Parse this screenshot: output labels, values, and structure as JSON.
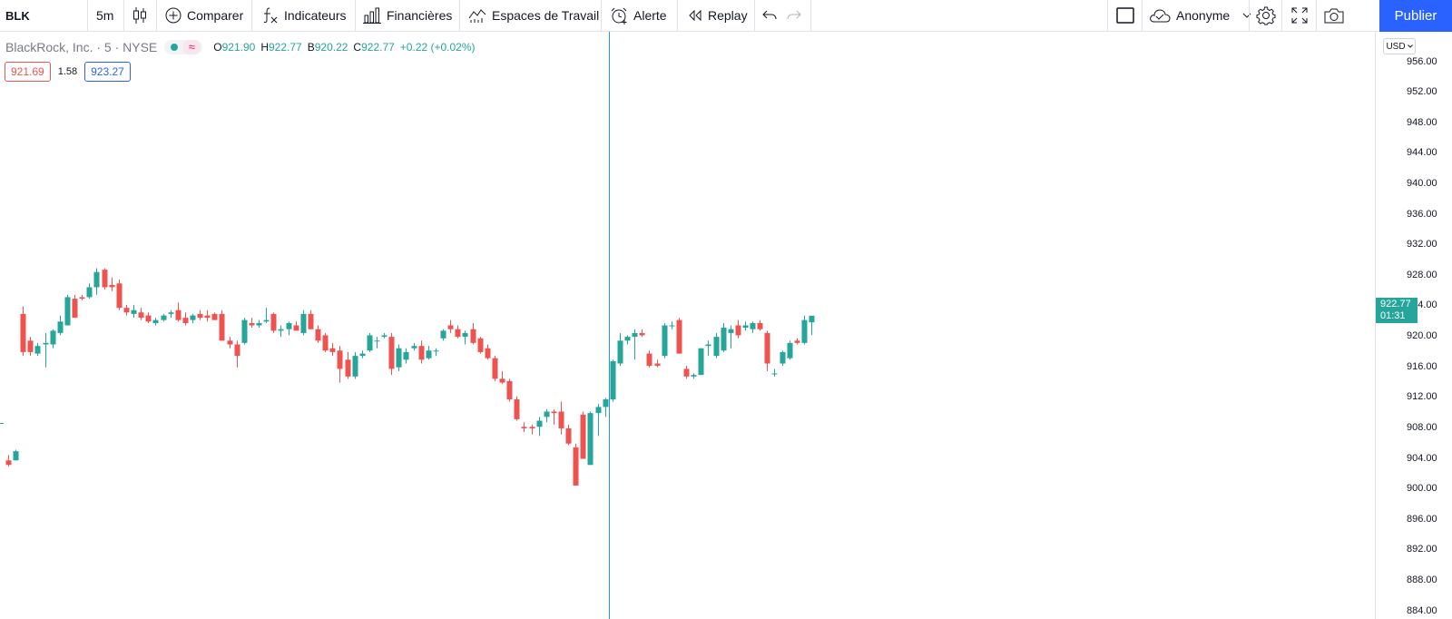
{
  "toolbar": {
    "symbol": "BLK",
    "interval": "5m",
    "compare_label": "Comparer",
    "indicators_label": "Indicateurs",
    "financials_label": "Financières",
    "workspaces_label": "Espaces de Travail",
    "alert_label": "Alerte",
    "replay_label": "Replay",
    "account_label": "Anonyme",
    "publish_label": "Publier"
  },
  "legend": {
    "title": "BlackRock, Inc. · 5 · NYSE",
    "approx_symbol": "≈",
    "open_key": "O",
    "open": "921.90",
    "high_key": "H",
    "high": "922.77",
    "low_key": "B",
    "low": "920.22",
    "close_key": "C",
    "close": "922.77",
    "change": "+0.22 (+0.02%)",
    "bid": "921.69",
    "spread": "1.58",
    "ask": "923.27"
  },
  "price_axis": {
    "currency": "USD",
    "ticks": [
      "956.00",
      "952.00",
      "948.00",
      "944.00",
      "940.00",
      "936.00",
      "932.00",
      "928.00",
      "924.00",
      "920.00",
      "916.00",
      "912.00",
      "908.00",
      "904.00",
      "900.00",
      "896.00",
      "892.00",
      "888.00",
      "884.00"
    ],
    "last_price": "922.77",
    "countdown": "01:31"
  },
  "colors": {
    "up": "#26a69a",
    "down": "#ef5350",
    "crosshair": "#2196f3",
    "accent": "#2962ff"
  },
  "chart_data": {
    "type": "candlestick",
    "ylim": [
      883,
      960
    ],
    "candles": [
      {
        "o": 903.8,
        "h": 904.5,
        "l": 903.0,
        "c": 903.2
      },
      {
        "o": 903.8,
        "h": 905.2,
        "l": 903.8,
        "c": 905.0
      },
      {
        "o": 923.0,
        "h": 924.0,
        "l": 917.5,
        "c": 918.0
      },
      {
        "o": 919.5,
        "h": 920.0,
        "l": 917.5,
        "c": 918.0
      },
      {
        "o": 917.8,
        "h": 919.2,
        "l": 917.5,
        "c": 918.8
      },
      {
        "o": 919.0,
        "h": 920.5,
        "l": 916.0,
        "c": 919.2
      },
      {
        "o": 919.0,
        "h": 921.0,
        "l": 918.5,
        "c": 920.8
      },
      {
        "o": 920.5,
        "h": 922.8,
        "l": 920.2,
        "c": 922.0
      },
      {
        "o": 921.5,
        "h": 925.5,
        "l": 921.5,
        "c": 925.2
      },
      {
        "o": 925.0,
        "h": 925.5,
        "l": 922.5,
        "c": 922.5
      },
      {
        "o": 925.2,
        "h": 925.5,
        "l": 924.8,
        "c": 925.0
      },
      {
        "o": 925.2,
        "h": 927.0,
        "l": 925.0,
        "c": 926.5
      },
      {
        "o": 926.5,
        "h": 929.0,
        "l": 925.5,
        "c": 928.5
      },
      {
        "o": 928.8,
        "h": 929.0,
        "l": 926.2,
        "c": 926.5
      },
      {
        "o": 926.8,
        "h": 927.8,
        "l": 926.0,
        "c": 926.5
      },
      {
        "o": 927.0,
        "h": 927.5,
        "l": 923.5,
        "c": 923.8
      },
      {
        "o": 923.8,
        "h": 924.2,
        "l": 922.8,
        "c": 923.2
      },
      {
        "o": 923.0,
        "h": 924.2,
        "l": 922.5,
        "c": 923.5
      },
      {
        "o": 923.2,
        "h": 923.8,
        "l": 922.2,
        "c": 922.5
      },
      {
        "o": 922.8,
        "h": 923.2,
        "l": 921.8,
        "c": 922.0
      },
      {
        "o": 921.8,
        "h": 922.5,
        "l": 921.5,
        "c": 922.2
      },
      {
        "o": 922.2,
        "h": 923.0,
        "l": 922.0,
        "c": 922.8
      },
      {
        "o": 923.0,
        "h": 923.5,
        "l": 922.5,
        "c": 923.2
      },
      {
        "o": 923.5,
        "h": 924.5,
        "l": 922.0,
        "c": 922.2
      },
      {
        "o": 922.5,
        "h": 923.2,
        "l": 921.5,
        "c": 921.8
      },
      {
        "o": 922.2,
        "h": 923.0,
        "l": 921.8,
        "c": 922.8
      },
      {
        "o": 923.0,
        "h": 923.5,
        "l": 922.2,
        "c": 922.5
      },
      {
        "o": 922.8,
        "h": 923.5,
        "l": 922.0,
        "c": 922.5
      },
      {
        "o": 923.0,
        "h": 923.2,
        "l": 922.2,
        "c": 922.2
      },
      {
        "o": 923.0,
        "h": 923.5,
        "l": 919.5,
        "c": 919.5
      },
      {
        "o": 919.5,
        "h": 920.0,
        "l": 918.5,
        "c": 919.0
      },
      {
        "o": 919.0,
        "h": 919.5,
        "l": 916.0,
        "c": 917.5
      },
      {
        "o": 919.2,
        "h": 922.5,
        "l": 919.0,
        "c": 922.2
      },
      {
        "o": 921.8,
        "h": 922.5,
        "l": 921.2,
        "c": 921.5
      },
      {
        "o": 921.5,
        "h": 922.2,
        "l": 921.2,
        "c": 921.8
      },
      {
        "o": 922.0,
        "h": 923.8,
        "l": 921.8,
        "c": 922.2
      },
      {
        "o": 923.0,
        "h": 923.2,
        "l": 920.5,
        "c": 920.8
      },
      {
        "o": 920.8,
        "h": 921.5,
        "l": 920.0,
        "c": 921.0
      },
      {
        "o": 921.0,
        "h": 922.0,
        "l": 920.2,
        "c": 921.8
      },
      {
        "o": 921.5,
        "h": 922.0,
        "l": 920.8,
        "c": 920.8
      },
      {
        "o": 920.5,
        "h": 923.5,
        "l": 920.2,
        "c": 923.0
      },
      {
        "o": 923.0,
        "h": 923.5,
        "l": 921.0,
        "c": 921.0
      },
      {
        "o": 921.0,
        "h": 921.5,
        "l": 919.2,
        "c": 919.5
      },
      {
        "o": 920.2,
        "h": 920.5,
        "l": 918.0,
        "c": 918.2
      },
      {
        "o": 918.5,
        "h": 919.2,
        "l": 917.5,
        "c": 918.0
      },
      {
        "o": 918.2,
        "h": 918.8,
        "l": 914.0,
        "c": 915.8
      },
      {
        "o": 917.0,
        "h": 918.0,
        "l": 914.5,
        "c": 914.8
      },
      {
        "o": 914.8,
        "h": 918.0,
        "l": 914.5,
        "c": 917.5
      },
      {
        "o": 917.5,
        "h": 918.2,
        "l": 917.2,
        "c": 917.8
      },
      {
        "o": 918.2,
        "h": 920.5,
        "l": 918.0,
        "c": 920.2
      },
      {
        "o": 919.5,
        "h": 920.0,
        "l": 918.5,
        "c": 919.5
      },
      {
        "o": 920.0,
        "h": 920.5,
        "l": 919.8,
        "c": 920.2
      },
      {
        "o": 920.0,
        "h": 920.5,
        "l": 915.0,
        "c": 915.8
      },
      {
        "o": 916.0,
        "h": 919.0,
        "l": 915.5,
        "c": 918.5
      },
      {
        "o": 917.0,
        "h": 918.5,
        "l": 916.5,
        "c": 918.0
      },
      {
        "o": 918.5,
        "h": 919.2,
        "l": 918.2,
        "c": 918.8
      },
      {
        "o": 918.8,
        "h": 919.5,
        "l": 916.5,
        "c": 917.0
      },
      {
        "o": 917.2,
        "h": 918.8,
        "l": 917.0,
        "c": 918.2
      },
      {
        "o": 918.2,
        "h": 918.5,
        "l": 917.5,
        "c": 918.2
      },
      {
        "o": 919.8,
        "h": 921.0,
        "l": 919.5,
        "c": 920.8
      },
      {
        "o": 921.5,
        "h": 922.2,
        "l": 920.5,
        "c": 921.0
      },
      {
        "o": 921.0,
        "h": 921.5,
        "l": 919.8,
        "c": 920.0
      },
      {
        "o": 920.0,
        "h": 920.8,
        "l": 919.0,
        "c": 920.5
      },
      {
        "o": 921.0,
        "h": 921.8,
        "l": 919.0,
        "c": 919.2
      },
      {
        "o": 919.8,
        "h": 920.0,
        "l": 917.8,
        "c": 918.0
      },
      {
        "o": 918.5,
        "h": 919.0,
        "l": 917.0,
        "c": 917.2
      },
      {
        "o": 917.2,
        "h": 917.5,
        "l": 914.2,
        "c": 914.5
      },
      {
        "o": 914.5,
        "h": 915.5,
        "l": 913.8,
        "c": 914.0
      },
      {
        "o": 914.2,
        "h": 914.5,
        "l": 911.5,
        "c": 911.8
      },
      {
        "o": 911.8,
        "h": 912.2,
        "l": 909.0,
        "c": 909.2
      },
      {
        "o": 908.2,
        "h": 908.8,
        "l": 907.5,
        "c": 908.0
      },
      {
        "o": 908.2,
        "h": 908.5,
        "l": 907.2,
        "c": 908.0
      },
      {
        "o": 908.2,
        "h": 909.5,
        "l": 907.0,
        "c": 909.0
      },
      {
        "o": 909.5,
        "h": 910.5,
        "l": 908.8,
        "c": 910.2
      },
      {
        "o": 910.2,
        "h": 910.5,
        "l": 908.5,
        "c": 910.0
      },
      {
        "o": 910.2,
        "h": 911.5,
        "l": 907.2,
        "c": 908.0
      },
      {
        "o": 908.0,
        "h": 908.5,
        "l": 905.8,
        "c": 906.0
      },
      {
        "o": 905.5,
        "h": 906.0,
        "l": 900.5,
        "c": 900.5
      },
      {
        "o": 909.8,
        "h": 910.2,
        "l": 904.0,
        "c": 904.0
      },
      {
        "o": 903.2,
        "h": 910.2,
        "l": 903.2,
        "c": 910.0
      },
      {
        "o": 910.0,
        "h": 911.2,
        "l": 907.0,
        "c": 910.8
      },
      {
        "o": 910.8,
        "h": 912.0,
        "l": 909.5,
        "c": 911.8
      },
      {
        "o": 911.8,
        "h": 917.0,
        "l": 911.5,
        "c": 916.8
      },
      {
        "o": 916.5,
        "h": 920.5,
        "l": 916.2,
        "c": 919.5
      },
      {
        "o": 919.5,
        "h": 920.2,
        "l": 919.0,
        "c": 920.0
      },
      {
        "o": 920.0,
        "h": 921.0,
        "l": 917.0,
        "c": 920.5
      },
      {
        "o": 920.5,
        "h": 921.0,
        "l": 920.0,
        "c": 920.2
      },
      {
        "o": 917.8,
        "h": 918.2,
        "l": 916.0,
        "c": 916.2
      },
      {
        "o": 916.5,
        "h": 917.0,
        "l": 916.0,
        "c": 916.2
      },
      {
        "o": 917.5,
        "h": 921.8,
        "l": 917.2,
        "c": 921.5
      },
      {
        "o": 921.5,
        "h": 922.0,
        "l": 921.0,
        "c": 921.5
      },
      {
        "o": 922.2,
        "h": 922.5,
        "l": 917.8,
        "c": 917.8
      },
      {
        "o": 915.8,
        "h": 916.2,
        "l": 914.5,
        "c": 914.8
      },
      {
        "o": 914.8,
        "h": 915.2,
        "l": 914.5,
        "c": 915.0
      },
      {
        "o": 915.0,
        "h": 918.5,
        "l": 915.0,
        "c": 918.5
      },
      {
        "o": 918.8,
        "h": 919.5,
        "l": 917.5,
        "c": 919.0
      },
      {
        "o": 917.5,
        "h": 920.5,
        "l": 917.2,
        "c": 920.0
      },
      {
        "o": 918.2,
        "h": 921.8,
        "l": 918.0,
        "c": 921.2
      },
      {
        "o": 920.5,
        "h": 921.5,
        "l": 918.5,
        "c": 921.0
      },
      {
        "o": 921.5,
        "h": 922.2,
        "l": 919.8,
        "c": 920.2
      },
      {
        "o": 921.2,
        "h": 922.0,
        "l": 920.8,
        "c": 921.5
      },
      {
        "o": 921.0,
        "h": 922.0,
        "l": 920.5,
        "c": 921.8
      },
      {
        "o": 921.8,
        "h": 922.2,
        "l": 920.8,
        "c": 921.0
      },
      {
        "o": 920.5,
        "h": 920.8,
        "l": 915.5,
        "c": 916.5
      },
      {
        "o": 915.2,
        "h": 915.8,
        "l": 914.8,
        "c": 915.2
      },
      {
        "o": 916.5,
        "h": 918.2,
        "l": 916.2,
        "c": 918.0
      },
      {
        "o": 917.2,
        "h": 919.5,
        "l": 917.0,
        "c": 919.2
      },
      {
        "o": 919.5,
        "h": 919.8,
        "l": 919.0,
        "c": 919.2
      },
      {
        "o": 919.2,
        "h": 922.8,
        "l": 919.0,
        "c": 922.2
      },
      {
        "o": 921.9,
        "h": 922.77,
        "l": 920.22,
        "c": 922.77
      }
    ]
  }
}
